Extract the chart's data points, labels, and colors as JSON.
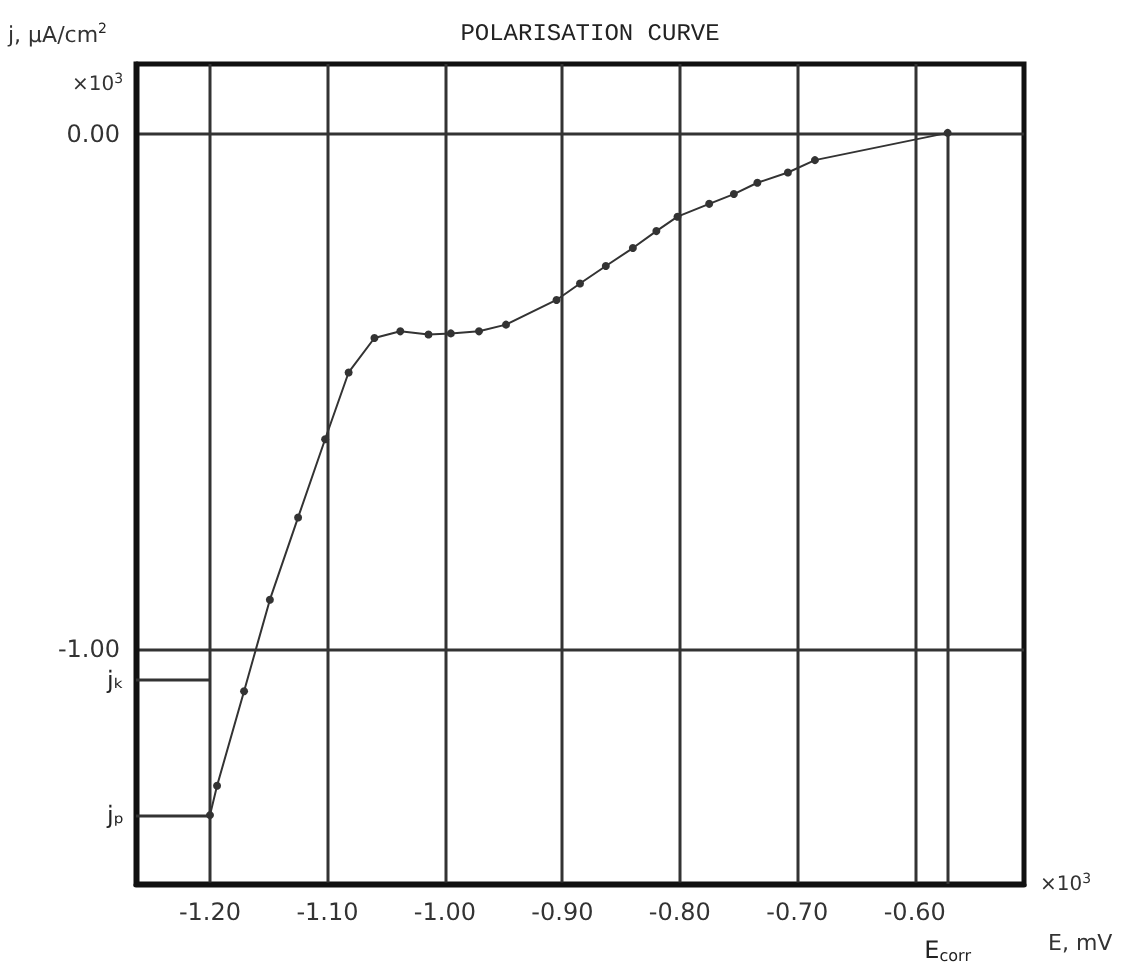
{
  "chart_data": {
    "type": "line",
    "title": "POLARISATION CURVE",
    "xlabel": "E, mV",
    "ylabel": "j, μA/cm$^{2}$",
    "x": [
      -1.2,
      -1.194,
      -1.171,
      -1.149,
      -1.125,
      -1.102,
      -1.082,
      -1.06,
      -1.038,
      -1.014,
      -0.995,
      -0.971,
      -0.948,
      -0.905,
      -0.885,
      -0.863,
      -0.84,
      -0.82,
      -0.802,
      -0.775,
      -0.754,
      -0.734,
      -0.708,
      -0.685,
      -0.572
    ],
    "series": [
      {
        "color": "#333333",
        "values": [
          -1.324,
          -1.267,
          -1.083,
          -0.905,
          -0.745,
          -0.593,
          -0.463,
          -0.396,
          -0.383,
          -0.389,
          -0.387,
          -0.383,
          -0.37,
          -0.322,
          -0.29,
          -0.256,
          -0.221,
          -0.188,
          -0.16,
          -0.135,
          -0.116,
          -0.094,
          -0.074,
          -0.05,
          0.003
        ]
      }
    ],
    "xlim": [
      -1.263,
      -0.507
    ],
    "ylim": [
      -1.458,
      0.137
    ],
    "xticks": [
      {
        "value": -1.2,
        "label": "-1.20"
      },
      {
        "value": -1.1,
        "label": "-1.10"
      },
      {
        "value": -1.0,
        "label": "-1.00"
      },
      {
        "value": -0.9,
        "label": "-0.90"
      },
      {
        "value": -0.8,
        "label": "-0.80"
      },
      {
        "value": -0.7,
        "label": "-0.70"
      },
      {
        "value": -0.6,
        "label": "-0.60"
      }
    ],
    "yticks": [
      {
        "value": 0,
        "label": "0.00"
      },
      {
        "value": -1,
        "label": "-1.00"
      }
    ],
    "grid": true,
    "marker": "circle",
    "line_style": "solid",
    "ref_lines": [
      {
        "axis": "y",
        "value": -1.061,
        "label": "jₖ"
      },
      {
        "axis": "y",
        "value": -1.324,
        "label": "jₚ"
      },
      {
        "axis": "x",
        "value": -0.572,
        "label": "E$_{corr}$"
      }
    ],
    "annotations": [
      "×10$^{3}$",
      "×10$^{3}$"
    ]
  }
}
